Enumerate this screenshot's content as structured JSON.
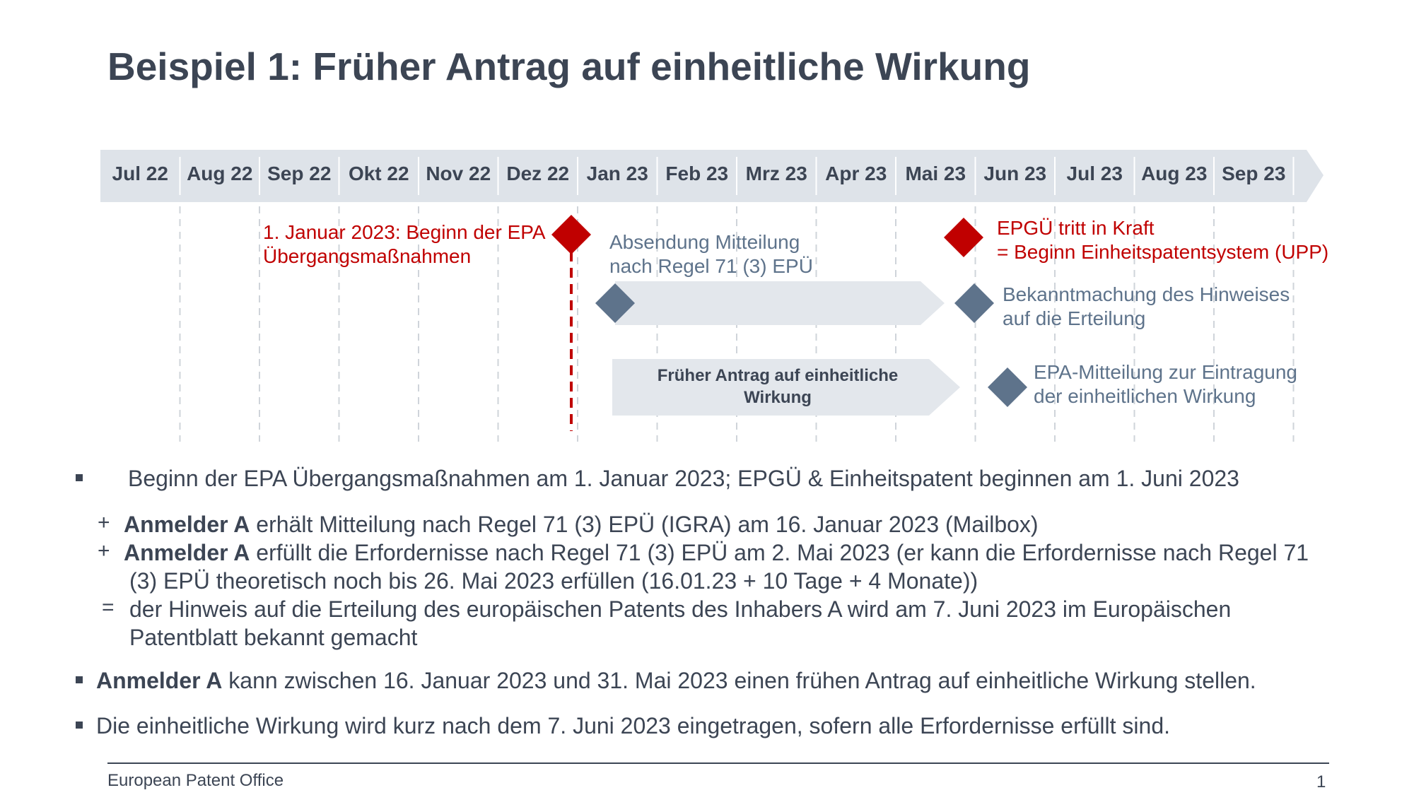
{
  "title": "Beispiel 1: Früher Antrag auf einheitliche Wirkung",
  "timeline": {
    "months": [
      "Jul 22",
      "Aug 22",
      "Sep 22",
      "Okt 22",
      "Nov 22",
      "Dez 22",
      "Jan 23",
      "Feb 23",
      "Mrz 23",
      "Apr 23",
      "Mai 23",
      "Jun 23",
      "Jul 23",
      "Aug 23",
      "Sep 23"
    ],
    "colors": {
      "bar": "#dee3e9",
      "red": "#c00000",
      "diamond": "#5e738b",
      "grid": "#cfd4da"
    }
  },
  "events": {
    "start_line1": "1. Januar 2023: Beginn der EPA",
    "start_line2": "Übergangsmaßnahmen",
    "rule71_line1": "Absendung Mitteilung",
    "rule71_line2": "nach Regel 71 (3) EPÜ",
    "upc_line1": "EPGÜ tritt in Kraft",
    "upc_line2": "= Beginn Einheitspatentsystem (UPP)",
    "grant_line1": "Bekanntmachung des Hinweises",
    "grant_line2": "auf die Erteilung",
    "early_request_line1": "Früher Antrag auf einheitliche",
    "early_request_line2": "Wirkung",
    "registration_line1": "EPA-Mitteilung zur Eintragung",
    "registration_line2": "der einheitlichen Wirkung"
  },
  "body": {
    "b1": "Beginn der EPA Übergangsmaßnahmen am 1. Januar 2023; EPGÜ & Einheitspatent beginnen am 1. Juni 2023",
    "s1_sym": "+",
    "s1_bold": "Anmelder A",
    "s1_text": " erhält Mitteilung nach Regel 71 (3) EPÜ (IGRA) am 16. Januar 2023 (Mailbox)",
    "s2_sym": "+",
    "s2_bold": "Anmelder A",
    "s2_text": " erfüllt die Erfordernisse nach Regel 71 (3) EPÜ am 2. Mai 2023 (er kann die Erfordernisse nach Regel 71",
    "s2_cont": "(3) EPÜ theoretisch noch bis 26. Mai 2023 erfüllen (16.01.23 + 10 Tage + 4 Monate))",
    "s3_sym": "=",
    "s3_text": "der Hinweis auf die Erteilung des europäischen Patents des Inhabers A wird am 7. Juni 2023 im Europäischen",
    "s3_cont": "Patentblatt bekannt gemacht",
    "b2_bold": "Anmelder A",
    "b2_text": " kann zwischen 16. Januar 2023 und 31. Mai 2023 einen frühen Antrag auf einheitliche Wirkung stellen.",
    "b3": "Die einheitliche Wirkung wird kurz nach dem 7. Juni 2023 eingetragen, sofern alle Erfordernisse erfüllt sind."
  },
  "footer": {
    "org": "European Patent Office",
    "page": "1"
  }
}
